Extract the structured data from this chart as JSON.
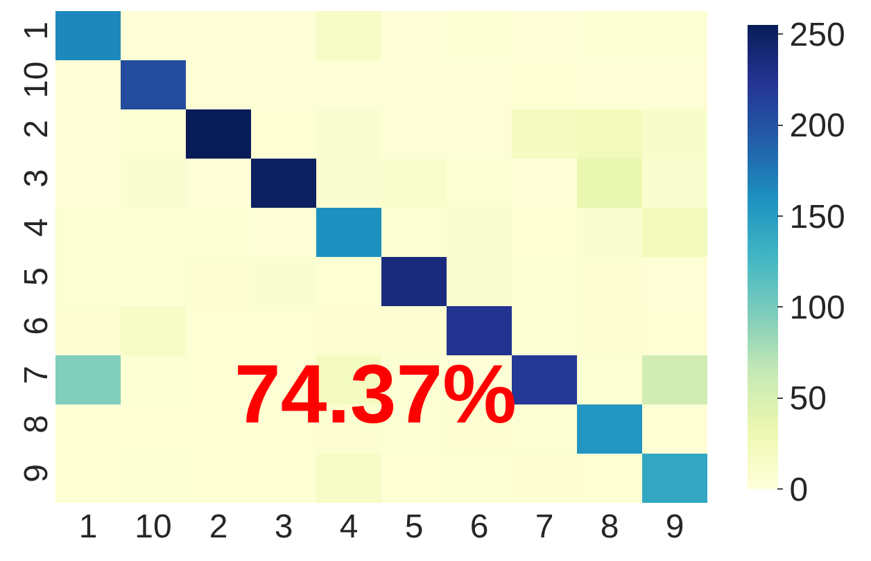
{
  "chart_data": {
    "type": "heatmap",
    "categories": [
      "1",
      "10",
      "2",
      "3",
      "4",
      "5",
      "6",
      "7",
      "8",
      "9"
    ],
    "y_categories": [
      "1",
      "10",
      "2",
      "3",
      "4",
      "5",
      "6",
      "7",
      "8",
      "9"
    ],
    "cells": [
      [
        165,
        3,
        3,
        3,
        15,
        3,
        5,
        3,
        5,
        5
      ],
      [
        3,
        205,
        3,
        3,
        3,
        3,
        3,
        4,
        3,
        3
      ],
      [
        3,
        5,
        255,
        4,
        8,
        3,
        3,
        20,
        25,
        12
      ],
      [
        3,
        8,
        3,
        250,
        8,
        10,
        5,
        2,
        35,
        8
      ],
      [
        5,
        5,
        5,
        3,
        160,
        5,
        8,
        4,
        8,
        25
      ],
      [
        5,
        5,
        6,
        8,
        4,
        235,
        8,
        5,
        6,
        3
      ],
      [
        6,
        15,
        4,
        4,
        6,
        6,
        225,
        5,
        6,
        4
      ],
      [
        95,
        5,
        4,
        4,
        20,
        5,
        3,
        220,
        5,
        55
      ],
      [
        4,
        4,
        4,
        4,
        6,
        5,
        6,
        5,
        155,
        4
      ],
      [
        4,
        5,
        4,
        4,
        15,
        4,
        5,
        6,
        4,
        140
      ]
    ],
    "clim": [
      0,
      255
    ],
    "cticks": [
      0,
      50,
      100,
      150,
      200,
      250
    ],
    "annotations": [
      "74.37%"
    ]
  }
}
